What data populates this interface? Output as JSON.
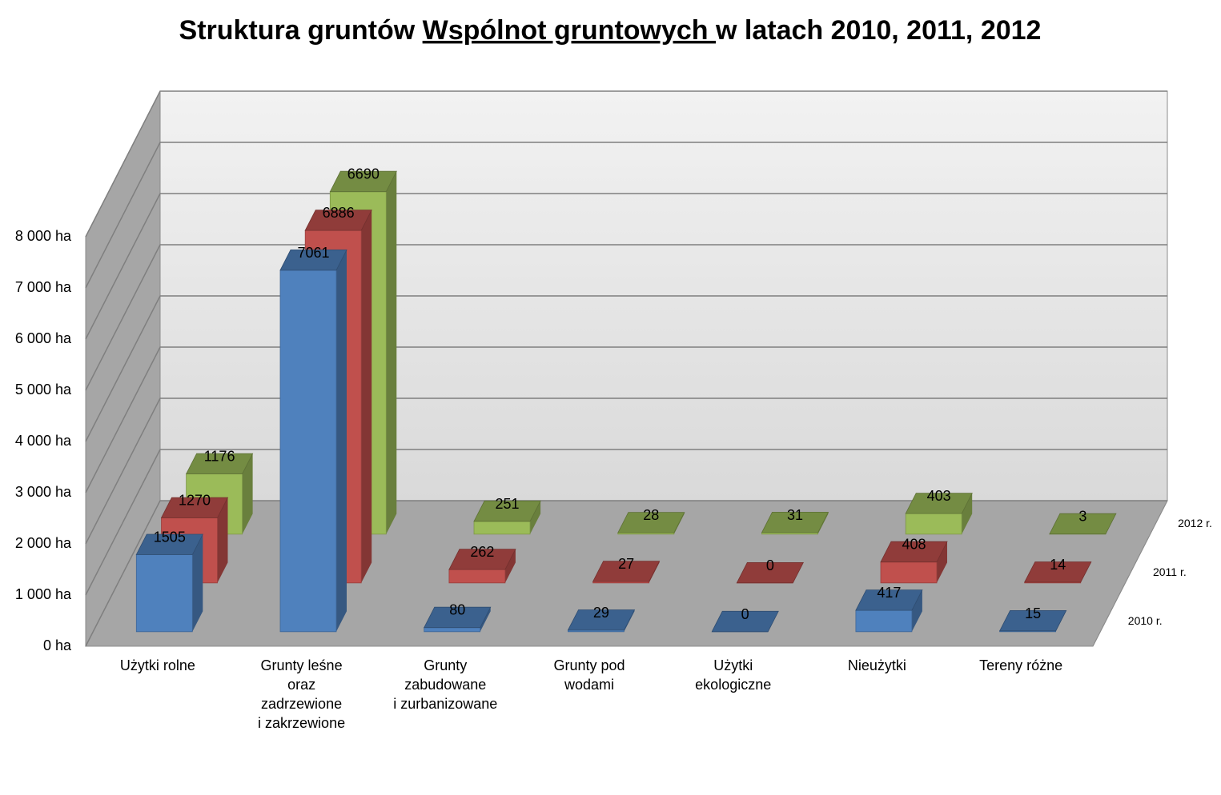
{
  "chart_data": {
    "type": "bar3d",
    "title": [
      "Struktura gruntów ",
      "Wspólnot gruntowych ",
      "w latach 2010, 2011, 2012"
    ],
    "categories": [
      [
        "Użytki rolne"
      ],
      [
        "Grunty leśne",
        "oraz",
        "zadrzewione",
        "i zakrzewione"
      ],
      [
        "Grunty",
        "zabudowane",
        "i zurbanizowane"
      ],
      [
        "Grunty pod",
        "wodami"
      ],
      [
        "Użytki",
        "ekologiczne"
      ],
      [
        "Nieużytki"
      ],
      [
        "Tereny różne"
      ]
    ],
    "series": [
      {
        "name": "2010 r.",
        "color": "#4f81bd",
        "values": [
          1505,
          7061,
          80,
          29,
          0,
          417,
          15
        ]
      },
      {
        "name": "2011 r.",
        "color": "#c0504d",
        "values": [
          1270,
          6886,
          262,
          27,
          0,
          408,
          14
        ]
      },
      {
        "name": "2012 r.",
        "color": "#9bbb59",
        "values": [
          1176,
          6690,
          251,
          28,
          31,
          403,
          3
        ]
      }
    ],
    "ylim": [
      0,
      8000
    ],
    "yticks": [
      {
        "value": 0,
        "label": "0 ha"
      },
      {
        "value": 1000,
        "label": "1 000 ha"
      },
      {
        "value": 2000,
        "label": "2 000 ha"
      },
      {
        "value": 3000,
        "label": "3 000 ha"
      },
      {
        "value": 4000,
        "label": "4 000 ha"
      },
      {
        "value": 5000,
        "label": "5 000 ha"
      },
      {
        "value": 6000,
        "label": "6 000 ha"
      },
      {
        "value": 7000,
        "label": "7 000 ha"
      },
      {
        "value": 8000,
        "label": "8 000 ha"
      }
    ],
    "grid": true
  }
}
